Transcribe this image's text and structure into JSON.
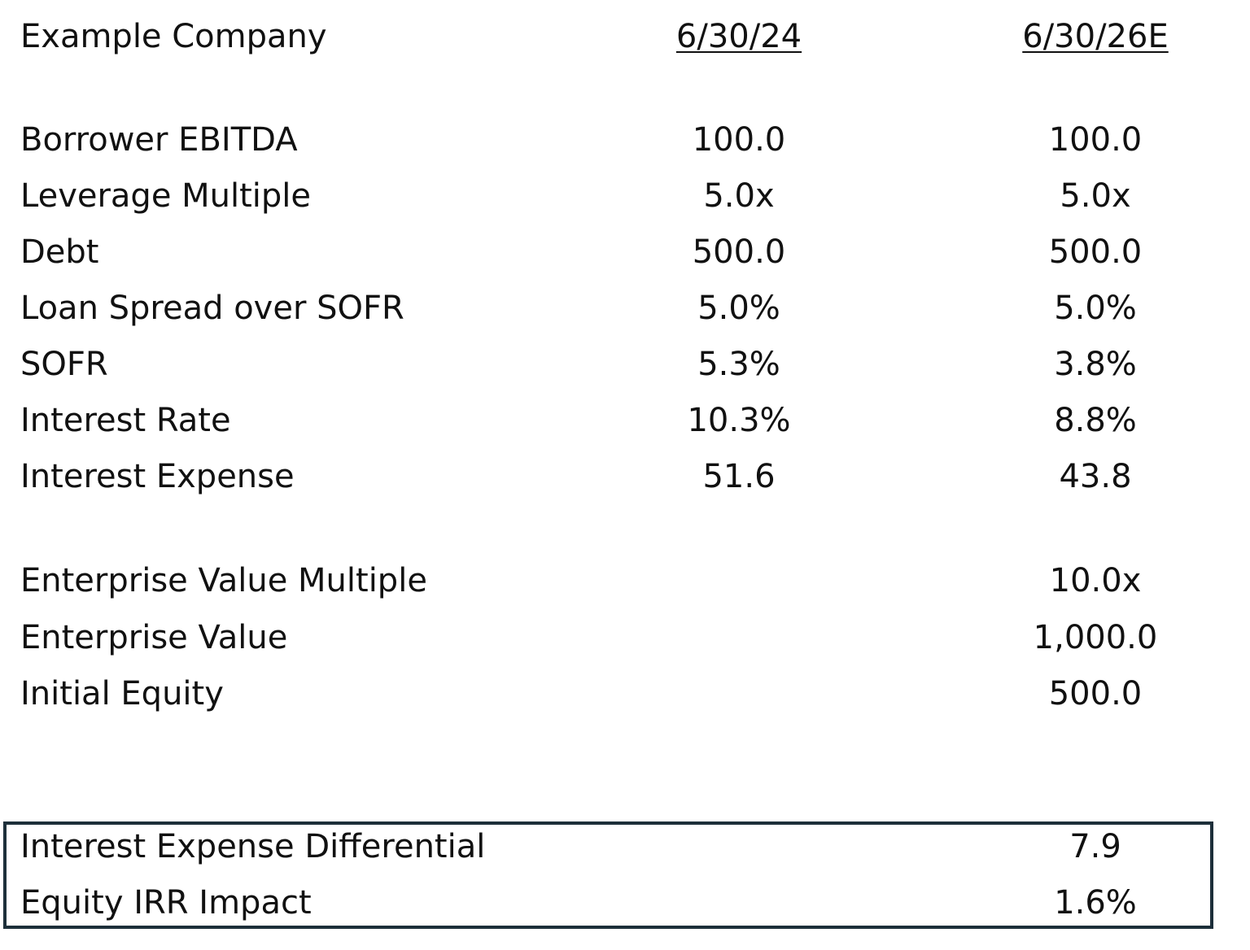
{
  "header": {
    "company": "Example Company",
    "col1": "6/30/24",
    "col2": "6/30/26E"
  },
  "rows": [
    {
      "label": "Borrower EBITDA",
      "v1": "100.0",
      "v2": "100.0"
    },
    {
      "label": "Leverage Multiple",
      "v1": "5.0x",
      "v2": "5.0x"
    },
    {
      "label": "Debt",
      "v1": "500.0",
      "v2": "500.0"
    },
    {
      "label": "Loan Spread over SOFR",
      "v1": "5.0%",
      "v2": "5.0%"
    },
    {
      "label": "SOFR",
      "v1": "5.3%",
      "v2": "3.8%"
    },
    {
      "label": "Interest Rate",
      "v1": "10.3%",
      "v2": "8.8%"
    },
    {
      "label": "Interest Expense",
      "v1": "51.6",
      "v2": "43.8"
    }
  ],
  "valuation": [
    {
      "label": "Enterprise Value Multiple",
      "v2": "10.0x"
    },
    {
      "label": "Enterprise Value",
      "v2": "1,000.0"
    },
    {
      "label": "Initial Equity",
      "v2": "500.0"
    }
  ],
  "summary": [
    {
      "label": "Interest Expense Differential",
      "v2": "7.9"
    },
    {
      "label": "Equity IRR Impact",
      "v2": "1.6%"
    }
  ]
}
